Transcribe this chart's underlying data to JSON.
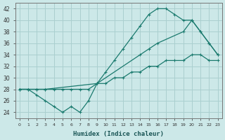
{
  "line1_x": [
    0,
    1,
    2,
    3,
    4,
    5,
    6,
    7,
    8,
    9,
    10,
    11,
    12,
    13,
    14,
    15,
    16,
    17,
    18,
    19,
    20,
    21,
    22,
    23
  ],
  "line1_y": [
    28,
    28,
    27,
    26,
    25,
    24,
    25,
    24,
    26,
    29,
    31,
    33,
    35,
    37,
    39,
    41,
    42,
    42,
    41,
    40,
    40,
    38,
    36,
    34
  ],
  "line2_x": [
    0,
    1,
    2,
    3,
    4,
    5,
    6,
    7,
    8,
    9,
    10,
    11,
    12,
    13,
    14,
    15,
    16,
    17,
    18,
    19,
    20,
    21,
    22,
    23
  ],
  "line2_y": [
    28,
    28,
    28,
    28,
    28,
    28,
    28,
    28,
    28,
    29,
    29,
    30,
    30,
    31,
    31,
    32,
    32,
    33,
    33,
    33,
    34,
    34,
    33,
    33
  ],
  "line3_x": [
    0,
    1,
    2,
    3,
    9,
    14,
    15,
    16,
    19,
    20,
    21,
    22,
    23
  ],
  "line3_y": [
    28,
    28,
    28,
    28,
    29,
    34,
    35,
    36,
    38,
    40,
    38,
    36,
    34
  ],
  "color": "#1a7a6e",
  "bg_color": "#cce8e8",
  "grid_color": "#aacfcf",
  "xlabel": "Humidex (Indice chaleur)",
  "ylabel_ticks": [
    24,
    26,
    28,
    30,
    32,
    34,
    36,
    38,
    40,
    42
  ],
  "xtick_labels": [
    "0",
    "1",
    "2",
    "3",
    "4",
    "5",
    "6",
    "7",
    "8",
    "9",
    "10",
    "11",
    "12",
    "13",
    "14",
    "15",
    "16",
    "17",
    "18",
    "19",
    "20",
    "21",
    "22",
    "23"
  ],
  "xlim": [
    -0.5,
    23.5
  ],
  "ylim": [
    23,
    43
  ],
  "title": ""
}
